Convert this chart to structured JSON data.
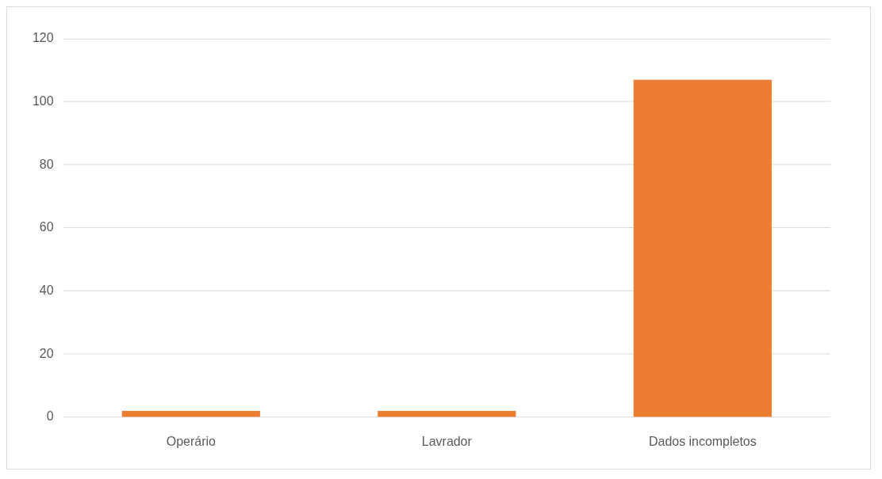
{
  "chart_data": {
    "type": "bar",
    "categories": [
      "Operário",
      "Lavrador",
      "Dados incompletos"
    ],
    "values": [
      2,
      2,
      107
    ],
    "color": "#ed7d31",
    "ylim": [
      0,
      120
    ],
    "yticks": [
      0,
      20,
      40,
      60,
      80,
      100,
      120
    ],
    "grid": "y"
  }
}
